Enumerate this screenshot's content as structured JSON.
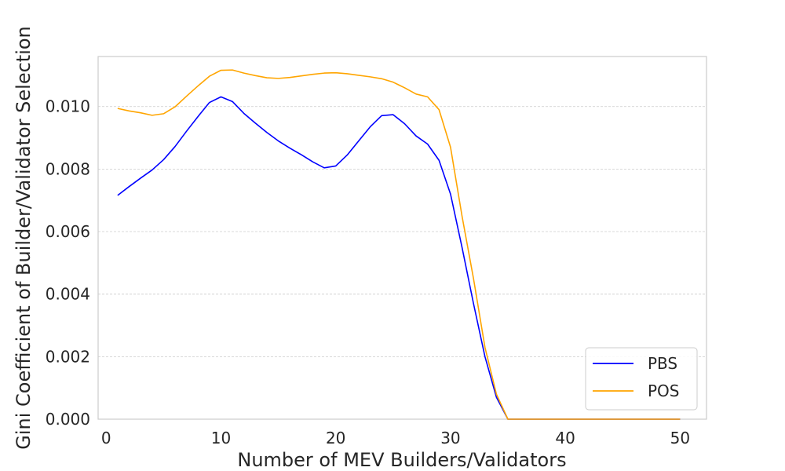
{
  "chart_data": {
    "type": "line",
    "title": "",
    "xlabel": "Number of MEV Builders/Validators",
    "ylabel": "Gini Coefficient of Builder/Validator Selection",
    "xlim": [
      -0.7,
      52.3
    ],
    "ylim": [
      0,
      0.0116
    ],
    "xticks": [
      0,
      10,
      20,
      30,
      40,
      50
    ],
    "xtick_labels": [
      "0",
      "10",
      "20",
      "30",
      "40",
      "50"
    ],
    "yticks": [
      0,
      0.002,
      0.004,
      0.006,
      0.008,
      0.01
    ],
    "ytick_labels": [
      "0.000",
      "0.002",
      "0.004",
      "0.006",
      "0.008",
      "0.010"
    ],
    "grid": "horizontal dashed",
    "legend_position": "lower-right",
    "series": [
      {
        "name": "PBS",
        "color": "#0000ff",
        "x": [
          1,
          2,
          3,
          4,
          5,
          6,
          7,
          8,
          9,
          10,
          11,
          12,
          13,
          14,
          15,
          16,
          17,
          18,
          19,
          20,
          21,
          22,
          23,
          24,
          25,
          26,
          27,
          28,
          29,
          30,
          31,
          32,
          33,
          34,
          35,
          36,
          37,
          38,
          39,
          40,
          41,
          42,
          43,
          44,
          45,
          46,
          47,
          48,
          49,
          50
        ],
        "y": [
          0.00716,
          0.00744,
          0.00771,
          0.00797,
          0.0083,
          0.00872,
          0.00921,
          0.00968,
          0.01013,
          0.01031,
          0.01016,
          0.00978,
          0.00947,
          0.00917,
          0.0089,
          0.00867,
          0.00846,
          0.00823,
          0.00804,
          0.0081,
          0.00845,
          0.0089,
          0.00935,
          0.00971,
          0.00974,
          0.00945,
          0.00906,
          0.0088,
          0.00828,
          0.0072,
          0.0055,
          0.0037,
          0.002,
          0.0007,
          0.0,
          0,
          0,
          0,
          0,
          0,
          0,
          0,
          0,
          0,
          0,
          0,
          0,
          0,
          0,
          0
        ]
      },
      {
        "name": "POS",
        "color": "#ffa500",
        "x": [
          1,
          2,
          3,
          4,
          5,
          6,
          7,
          8,
          9,
          10,
          11,
          12,
          13,
          14,
          15,
          16,
          17,
          18,
          19,
          20,
          21,
          22,
          23,
          24,
          25,
          26,
          27,
          28,
          29,
          30,
          31,
          32,
          33,
          34,
          35,
          36,
          37,
          38,
          39,
          40,
          41,
          42,
          43,
          44,
          45,
          46,
          47,
          48,
          49,
          50
        ],
        "y": [
          0.00994,
          0.00986,
          0.0098,
          0.00972,
          0.00977,
          0.00999,
          0.01033,
          0.01066,
          0.01097,
          0.01116,
          0.01117,
          0.01107,
          0.01099,
          0.01092,
          0.0109,
          0.01093,
          0.01098,
          0.01103,
          0.01107,
          0.01108,
          0.01105,
          0.011,
          0.01095,
          0.01089,
          0.01078,
          0.0106,
          0.0104,
          0.01031,
          0.0099,
          0.0087,
          0.0065,
          0.0045,
          0.0023,
          0.0008,
          0.0,
          0,
          0,
          0,
          0,
          0,
          0,
          0,
          0,
          0,
          0,
          0,
          0,
          0,
          0,
          0
        ]
      }
    ]
  }
}
